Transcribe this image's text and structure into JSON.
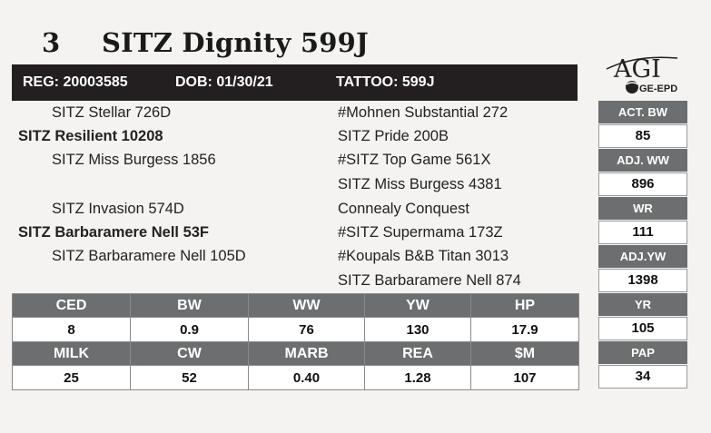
{
  "lot": {
    "number": "3",
    "name": "SITZ Dignity 599J"
  },
  "registration": {
    "reg": "REG: 20003585",
    "dob": "DOB: 01/30/21",
    "tattoo": "TATTOO: 599J"
  },
  "logo": {
    "top_text": "AGI",
    "bottom_text": "GE-EPD"
  },
  "pedigree": {
    "sire_sire": "SITZ Stellar 726D",
    "sire": "SITZ Resilient 10208",
    "sire_dam": "SITZ Miss Burgess 1856",
    "dam_sire": "SITZ Invasion 574D",
    "dam": "SITZ Barbaramere Nell 53F",
    "dam_dam": "SITZ Barbaramere Nell 105D",
    "ancestors": [
      "#Mohnen Substantial 272",
      "SITZ Pride 200B",
      "#SITZ Top Game 561X",
      "SITZ Miss Burgess 4381",
      "Connealy Conquest",
      "#SITZ Supermama 173Z",
      "#Koupals B&B Titan 3013",
      "SITZ Barbaramere Nell 874"
    ]
  },
  "performance": [
    {
      "label": "ACT. BW",
      "value": "85"
    },
    {
      "label": "ADJ. WW",
      "value": "896"
    },
    {
      "label": "WR",
      "value": "111"
    },
    {
      "label": "ADJ.YW",
      "value": "1398"
    },
    {
      "label": "YR",
      "value": "105"
    },
    {
      "label": "PAP",
      "value": "34"
    }
  ],
  "epds": {
    "row1": [
      {
        "label": "CED",
        "value": "8"
      },
      {
        "label": "BW",
        "value": "0.9"
      },
      {
        "label": "WW",
        "value": "76"
      },
      {
        "label": "YW",
        "value": "130"
      },
      {
        "label": "HP",
        "value": "17.9"
      }
    ],
    "row2": [
      {
        "label": "MILK",
        "value": "25"
      },
      {
        "label": "CW",
        "value": "52"
      },
      {
        "label": "MARB",
        "value": "0.40"
      },
      {
        "label": "REA",
        "value": "1.28"
      },
      {
        "label": "$M",
        "value": "107"
      }
    ]
  },
  "colors": {
    "header_gray": "#6d6e70",
    "reg_bar": "#231f20",
    "background": "#f4f3f1"
  }
}
